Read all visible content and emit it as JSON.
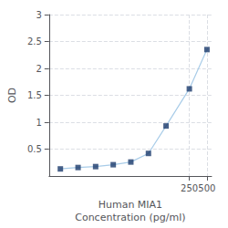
{
  "chart_data": {
    "type": "line",
    "xlabel": "Human MIA1\nConcentration (pg/ml)",
    "ylabel": "OD",
    "x": [
      1.56,
      3.13,
      6.25,
      12.5,
      25,
      50,
      100,
      250,
      500
    ],
    "series": [
      {
        "type": "line",
        "color": "#a8cce8",
        "values": [
          0.132,
          0.158,
          0.175,
          0.21,
          0.26,
          0.42,
          0.93,
          1.62,
          2.35
        ]
      },
      {
        "type": "scatter",
        "color": "#1a3a6b",
        "marker": "square",
        "values": [
          0.132,
          0.158,
          0.175,
          0.21,
          0.26,
          0.42,
          0.93,
          1.62,
          2.35
        ]
      }
    ],
    "log": "x",
    "xlim": [
      1.0,
      600
    ],
    "xticks": [
      250,
      500
    ],
    "ylim": [
      0.0,
      3.0
    ],
    "yticks": [
      0.5,
      1,
      1.5,
      2,
      2.5,
      3
    ],
    "grid": true
  }
}
